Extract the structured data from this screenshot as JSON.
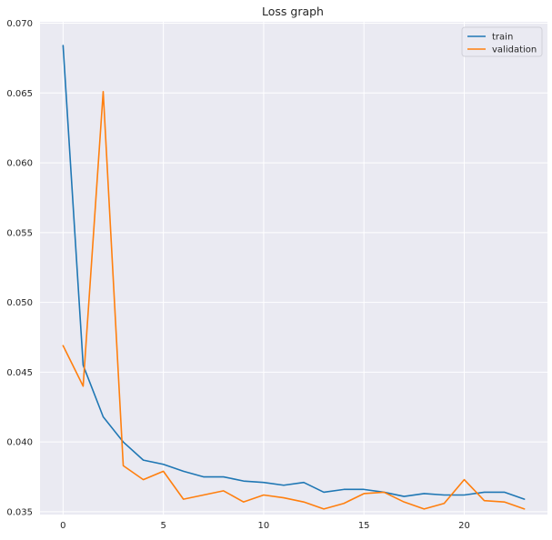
{
  "chart_data": {
    "type": "line",
    "title": "Loss graph",
    "xlabel": "",
    "ylabel": "",
    "x": [
      0,
      1,
      2,
      3,
      4,
      5,
      6,
      7,
      8,
      9,
      10,
      11,
      12,
      13,
      14,
      15,
      16,
      17,
      18,
      19,
      20,
      21,
      22,
      23
    ],
    "xlim": [
      -1.15,
      24.15
    ],
    "ylim": [
      0.0348,
      0.0701
    ],
    "xticks": [
      0,
      5,
      10,
      15,
      20
    ],
    "xtick_labels": [
      "0",
      "5",
      "10",
      "15",
      "20"
    ],
    "yticks": [
      0.035,
      0.04,
      0.045,
      0.05,
      0.055,
      0.06,
      0.065,
      0.07
    ],
    "ytick_labels": [
      "0.035",
      "0.040",
      "0.045",
      "0.050",
      "0.055",
      "0.060",
      "0.065",
      "0.070"
    ],
    "grid": true,
    "legend_position": "top-right",
    "background_color": "#eaeaf2",
    "grid_color": "#ffffff",
    "series": [
      {
        "name": "train",
        "color": "#1f77b4",
        "values": [
          0.0684,
          0.0455,
          0.0418,
          0.04,
          0.0387,
          0.0384,
          0.0379,
          0.0375,
          0.0375,
          0.0372,
          0.0371,
          0.0369,
          0.0371,
          0.0364,
          0.0366,
          0.0366,
          0.0364,
          0.0361,
          0.0363,
          0.0362,
          0.0362,
          0.0364,
          0.0364,
          0.0359
        ]
      },
      {
        "name": "validation",
        "color": "#ff7f0e",
        "values": [
          0.0469,
          0.044,
          0.0651,
          0.0383,
          0.0373,
          0.0379,
          0.0359,
          0.0362,
          0.0365,
          0.0357,
          0.0362,
          0.036,
          0.0357,
          0.0352,
          0.0356,
          0.0363,
          0.0364,
          0.0357,
          0.0352,
          0.0356,
          0.0373,
          0.0358,
          0.0357,
          0.0352
        ]
      }
    ]
  }
}
